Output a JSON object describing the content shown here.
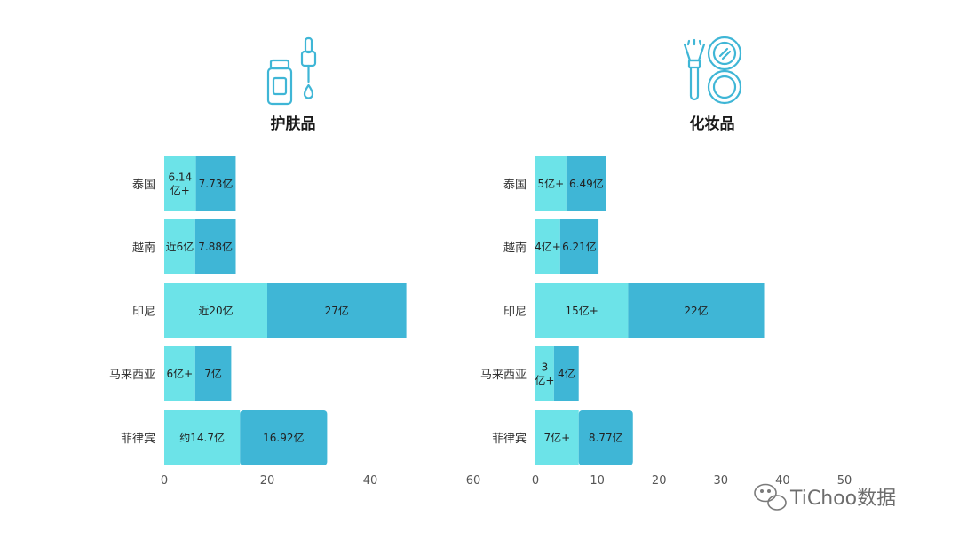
{
  "colors": {
    "light": "#6ce3e8",
    "dark": "#3fb6d6",
    "icon": "#3fb6d6"
  },
  "watermark": {
    "text": "TiChoo数据",
    "icon": "wechat-icon"
  },
  "chart_data": [
    {
      "type": "bar",
      "orientation": "horizontal",
      "stacked": true,
      "title": "护肤品",
      "icon": "skincare-bottle-dropper-icon",
      "categories": [
        "泰国",
        "越南",
        "印尼",
        "马来西亚",
        "菲律宾"
      ],
      "series": [
        {
          "values": [
            6.14,
            6,
            20,
            6,
            14.7
          ],
          "labels": [
            "6.14亿+",
            "近6亿",
            "近20亿",
            "6亿+",
            "约14.7亿"
          ]
        },
        {
          "values": [
            7.73,
            7.88,
            27,
            7,
            16.92
          ],
          "labels": [
            "7.73亿",
            "7.88亿",
            "27亿",
            "7亿",
            "16.92亿"
          ]
        }
      ],
      "xlim": [
        0,
        60
      ],
      "xticks": [
        "0",
        "20",
        "40",
        "60"
      ]
    },
    {
      "type": "bar",
      "orientation": "horizontal",
      "stacked": true,
      "title": "化妆品",
      "icon": "makeup-brush-compact-icon",
      "categories": [
        "泰国",
        "越南",
        "印尼",
        "马来西亚",
        "菲律宾"
      ],
      "series": [
        {
          "values": [
            5,
            4,
            15,
            3,
            7
          ],
          "labels": [
            "5亿+",
            "4亿+",
            "15亿+",
            "3亿+",
            "7亿+"
          ]
        },
        {
          "values": [
            6.49,
            6.21,
            22,
            4,
            8.77
          ],
          "labels": [
            "6.49亿",
            "6.21亿",
            "22亿",
            "4亿",
            "8.77亿"
          ]
        }
      ],
      "xlim": [
        0,
        50
      ],
      "xticks": [
        "0",
        "10",
        "20",
        "30",
        "40",
        "50"
      ]
    }
  ]
}
